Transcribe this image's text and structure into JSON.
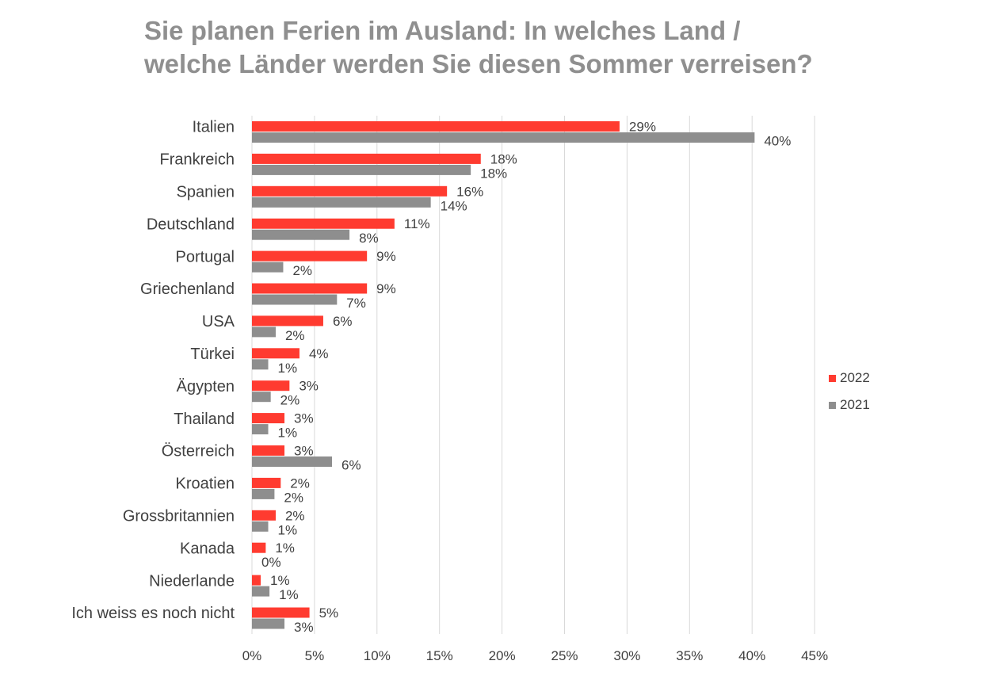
{
  "title_lines": [
    "Sie planen Ferien im Ausland: In welches Land /",
    "welche Länder werden Sie diesen Sommer verreisen?"
  ],
  "colors": {
    "2022": "#ff3b30",
    "2021": "#8e8e8e",
    "grid": "#d9d9d9",
    "title": "#8f8f8f",
    "text": "#404040"
  },
  "legend": [
    "2022",
    "2021"
  ],
  "chart_data": {
    "type": "bar",
    "orientation": "horizontal",
    "title": "Sie planen Ferien im Ausland: In welches Land / welche Länder werden Sie diesen Sommer verreisen?",
    "categories": [
      "Italien",
      "Frankreich",
      "Spanien",
      "Deutschland",
      "Portugal",
      "Griechenland",
      "USA",
      "Türkei",
      "Ägypten",
      "Thailand",
      "Österreich",
      "Kroatien",
      "Grossbritannien",
      "Kanada",
      "Niederlande",
      "Ich weiss es noch nicht"
    ],
    "series": [
      {
        "name": "2022",
        "values": [
          29.4,
          18.3,
          15.6,
          11.4,
          9.2,
          9.2,
          5.7,
          3.8,
          3.0,
          2.6,
          2.6,
          2.3,
          1.9,
          1.1,
          0.7,
          4.6
        ],
        "labels": [
          "29%",
          "18%",
          "16%",
          "11%",
          "9%",
          "9%",
          "6%",
          "4%",
          "3%",
          "3%",
          "3%",
          "2%",
          "2%",
          "1%",
          "1%",
          "5%"
        ]
      },
      {
        "name": "2021",
        "values": [
          40.2,
          17.5,
          14.3,
          7.8,
          2.5,
          6.8,
          1.9,
          1.3,
          1.5,
          1.3,
          6.4,
          1.8,
          1.3,
          0.0,
          1.4,
          2.6
        ],
        "labels": [
          "40%",
          "18%",
          "14%",
          "8%",
          "2%",
          "7%",
          "2%",
          "1%",
          "2%",
          "1%",
          "6%",
          "2%",
          "1%",
          "0%",
          "1%",
          "3%"
        ]
      }
    ],
    "xlim": [
      0,
      45
    ],
    "xticks": [
      "0%",
      "5%",
      "10%",
      "15%",
      "20%",
      "25%",
      "30%",
      "35%",
      "40%",
      "45%"
    ],
    "grid": true,
    "legend_position": "right"
  }
}
